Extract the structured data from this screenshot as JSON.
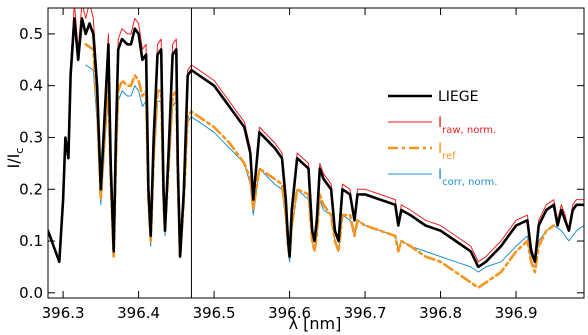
{
  "chart_data": {
    "type": "line",
    "xlabel": "λ [nm]",
    "ylabel_main": "I/I",
    "ylabel_sub": "c",
    "xlim": [
      396.28,
      396.99
    ],
    "ylim": [
      -0.01,
      0.55
    ],
    "xticks": [
      {
        "v": 396.3,
        "label": "396.3"
      },
      {
        "v": 396.4,
        "label": "396.4"
      },
      {
        "v": 396.5,
        "label": "396.5"
      },
      {
        "v": 396.6,
        "label": "396.6"
      },
      {
        "v": 396.7,
        "label": "396.7"
      },
      {
        "v": 396.8,
        "label": "396.8"
      },
      {
        "v": 396.9,
        "label": "396.9"
      }
    ],
    "yticks": [
      {
        "v": 0.0,
        "label": "0.0"
      },
      {
        "v": 0.1,
        "label": "0.1"
      },
      {
        "v": 0.2,
        "label": "0.2"
      },
      {
        "v": 0.3,
        "label": "0.3"
      },
      {
        "v": 0.4,
        "label": "0.4"
      },
      {
        "v": 0.5,
        "label": "0.5"
      }
    ],
    "vline_x": 396.47,
    "legend_position": "right",
    "series": [
      {
        "name": "LIEGE",
        "legend_main": "LIEGE",
        "legend_sub": "",
        "color": "#000000",
        "width": 2.6,
        "dash": "",
        "x": [
          396.28,
          396.29,
          396.295,
          396.3,
          396.303,
          396.307,
          396.31,
          396.315,
          396.32,
          396.325,
          396.33,
          396.335,
          396.34,
          396.345,
          396.35,
          396.355,
          396.36,
          396.363,
          396.367,
          396.37,
          396.373,
          396.378,
          396.385,
          396.39,
          396.395,
          396.4,
          396.405,
          396.41,
          396.413,
          396.416,
          396.42,
          396.425,
          396.43,
          396.433,
          396.435,
          396.44,
          396.445,
          396.45,
          396.452,
          396.455,
          396.46,
          396.465,
          396.47,
          396.48,
          396.5,
          396.52,
          396.54,
          396.548,
          396.552,
          396.56,
          396.58,
          396.59,
          396.595,
          396.598,
          396.6,
          396.603,
          396.61,
          396.625,
          396.63,
          396.633,
          396.636,
          396.64,
          396.645,
          396.655,
          396.66,
          396.665,
          396.67,
          396.68,
          396.686,
          396.69,
          396.7,
          396.72,
          396.74,
          396.744,
          396.748,
          396.76,
          396.78,
          396.8,
          396.82,
          396.84,
          396.85,
          396.86,
          396.88,
          396.9,
          396.915,
          396.92,
          396.925,
          396.93,
          396.94,
          396.95,
          396.955,
          396.96,
          396.965,
          396.97,
          396.975,
          396.98,
          396.99
        ],
        "y": [
          0.12,
          0.08,
          0.06,
          0.18,
          0.3,
          0.26,
          0.42,
          0.53,
          0.45,
          0.53,
          0.5,
          0.52,
          0.5,
          0.4,
          0.2,
          0.34,
          0.48,
          0.25,
          0.08,
          0.3,
          0.47,
          0.49,
          0.48,
          0.48,
          0.51,
          0.5,
          0.45,
          0.46,
          0.2,
          0.11,
          0.3,
          0.46,
          0.47,
          0.2,
          0.12,
          0.28,
          0.46,
          0.47,
          0.25,
          0.07,
          0.2,
          0.42,
          0.43,
          0.42,
          0.4,
          0.36,
          0.32,
          0.27,
          0.18,
          0.31,
          0.28,
          0.26,
          0.18,
          0.1,
          0.07,
          0.16,
          0.26,
          0.24,
          0.12,
          0.1,
          0.14,
          0.24,
          0.22,
          0.2,
          0.12,
          0.1,
          0.2,
          0.19,
          0.14,
          0.19,
          0.19,
          0.18,
          0.17,
          0.13,
          0.16,
          0.15,
          0.13,
          0.12,
          0.1,
          0.08,
          0.05,
          0.06,
          0.09,
          0.13,
          0.14,
          0.08,
          0.06,
          0.13,
          0.16,
          0.17,
          0.13,
          0.16,
          0.14,
          0.12,
          0.16,
          0.17,
          0.17
        ]
      },
      {
        "name": "I raw, norm.",
        "legend_main": "I",
        "legend_sub": "raw, norm.",
        "color": "#ee2020",
        "width": 1,
        "dash": "",
        "x": [
          396.28,
          396.29,
          396.295,
          396.3,
          396.303,
          396.307,
          396.31,
          396.315,
          396.32,
          396.325,
          396.33,
          396.335,
          396.34,
          396.345,
          396.35,
          396.355,
          396.36,
          396.363,
          396.367,
          396.37,
          396.373,
          396.378,
          396.385,
          396.39,
          396.395,
          396.4,
          396.405,
          396.41,
          396.413,
          396.416,
          396.42,
          396.425,
          396.43,
          396.433,
          396.435,
          396.44,
          396.445,
          396.45,
          396.452,
          396.455,
          396.46,
          396.465,
          396.47,
          396.48,
          396.5,
          396.52,
          396.54,
          396.548,
          396.552,
          396.56,
          396.58,
          396.59,
          396.595,
          396.598,
          396.6,
          396.603,
          396.61,
          396.625,
          396.63,
          396.633,
          396.636,
          396.64,
          396.645,
          396.655,
          396.66,
          396.665,
          396.67,
          396.68,
          396.686,
          396.69,
          396.7,
          396.72,
          396.74,
          396.744,
          396.748,
          396.76,
          396.78,
          396.8,
          396.82,
          396.84,
          396.85,
          396.86,
          396.88,
          396.9,
          396.915,
          396.92,
          396.925,
          396.93,
          396.94,
          396.95,
          396.955,
          396.96,
          396.965,
          396.97,
          396.975,
          396.98,
          396.99
        ],
        "y": [
          0.12,
          0.08,
          0.06,
          0.18,
          0.3,
          0.26,
          0.44,
          0.56,
          0.47,
          0.56,
          0.53,
          0.56,
          0.53,
          0.42,
          0.21,
          0.36,
          0.5,
          0.26,
          0.08,
          0.31,
          0.49,
          0.51,
          0.5,
          0.5,
          0.53,
          0.52,
          0.47,
          0.48,
          0.21,
          0.11,
          0.31,
          0.48,
          0.49,
          0.21,
          0.12,
          0.29,
          0.48,
          0.49,
          0.26,
          0.07,
          0.21,
          0.43,
          0.44,
          0.43,
          0.41,
          0.37,
          0.33,
          0.28,
          0.18,
          0.32,
          0.29,
          0.27,
          0.18,
          0.1,
          0.07,
          0.16,
          0.27,
          0.25,
          0.12,
          0.1,
          0.14,
          0.25,
          0.23,
          0.21,
          0.12,
          0.1,
          0.21,
          0.2,
          0.14,
          0.2,
          0.2,
          0.19,
          0.18,
          0.13,
          0.17,
          0.16,
          0.14,
          0.13,
          0.11,
          0.09,
          0.06,
          0.07,
          0.1,
          0.14,
          0.15,
          0.09,
          0.06,
          0.14,
          0.17,
          0.18,
          0.14,
          0.17,
          0.15,
          0.12,
          0.17,
          0.18,
          0.18
        ]
      },
      {
        "name": "I ref",
        "legend_main": "I",
        "legend_sub": "ref",
        "color": "#f7941d",
        "width": 2.6,
        "dash": "10,4,3,4",
        "x": [
          396.33,
          396.34,
          396.345,
          396.35,
          396.355,
          396.36,
          396.363,
          396.367,
          396.37,
          396.373,
          396.378,
          396.385,
          396.39,
          396.395,
          396.4,
          396.405,
          396.41,
          396.413,
          396.416,
          396.42,
          396.425,
          396.43,
          396.433,
          396.435,
          396.44,
          396.445,
          396.45,
          396.452,
          396.455,
          396.46,
          396.465,
          396.47,
          396.48,
          396.5,
          396.52,
          396.54,
          396.548,
          396.552,
          396.56,
          396.58,
          396.59,
          396.595,
          396.598,
          396.6,
          396.603,
          396.61,
          396.625,
          396.63,
          396.633,
          396.636,
          396.64,
          396.645,
          396.655,
          396.66,
          396.665,
          396.67,
          396.68,
          396.686,
          396.69,
          396.7,
          396.72,
          396.74,
          396.744,
          396.748,
          396.76,
          396.78,
          396.8,
          396.82,
          396.84,
          396.85,
          396.86,
          396.88,
          396.9,
          396.915,
          396.92,
          396.925,
          396.93,
          396.94,
          396.95
        ],
        "y": [
          0.48,
          0.47,
          0.36,
          0.18,
          0.3,
          0.4,
          0.22,
          0.07,
          0.25,
          0.39,
          0.41,
          0.4,
          0.4,
          0.42,
          0.41,
          0.38,
          0.39,
          0.18,
          0.1,
          0.26,
          0.39,
          0.39,
          0.18,
          0.12,
          0.25,
          0.38,
          0.39,
          0.22,
          0.07,
          0.18,
          0.34,
          0.35,
          0.34,
          0.32,
          0.29,
          0.25,
          0.22,
          0.16,
          0.24,
          0.22,
          0.21,
          0.15,
          0.09,
          0.07,
          0.13,
          0.2,
          0.19,
          0.1,
          0.08,
          0.11,
          0.19,
          0.17,
          0.15,
          0.1,
          0.08,
          0.15,
          0.15,
          0.11,
          0.14,
          0.13,
          0.12,
          0.11,
          0.08,
          0.1,
          0.09,
          0.07,
          0.06,
          0.04,
          0.02,
          0.01,
          0.02,
          0.04,
          0.08,
          0.1,
          0.06,
          0.04,
          0.09,
          0.12,
          0.13
        ]
      },
      {
        "name": "I corr, norm.",
        "legend_main": "I",
        "legend_sub": "corr, norm.",
        "color": "#1f8fd6",
        "width": 1,
        "dash": "",
        "x": [
          396.33,
          396.34,
          396.345,
          396.35,
          396.355,
          396.36,
          396.363,
          396.367,
          396.37,
          396.373,
          396.378,
          396.385,
          396.39,
          396.395,
          396.4,
          396.405,
          396.41,
          396.413,
          396.416,
          396.42,
          396.425,
          396.43,
          396.433,
          396.435,
          396.44,
          396.445,
          396.45,
          396.452,
          396.455,
          396.46,
          396.465,
          396.47,
          396.48,
          396.5,
          396.52,
          396.54,
          396.548,
          396.552,
          396.56,
          396.58,
          396.59,
          396.595,
          396.598,
          396.6,
          396.603,
          396.61,
          396.625,
          396.63,
          396.633,
          396.636,
          396.64,
          396.645,
          396.655,
          396.66,
          396.665,
          396.67,
          396.68,
          396.686,
          396.69,
          396.7,
          396.72,
          396.74,
          396.744,
          396.748,
          396.76,
          396.78,
          396.8,
          396.82,
          396.84,
          396.85,
          396.86,
          396.88,
          396.9,
          396.915,
          396.92,
          396.925,
          396.93,
          396.94,
          396.95,
          396.96,
          396.97,
          396.98,
          396.99
        ],
        "y": [
          0.44,
          0.43,
          0.33,
          0.17,
          0.28,
          0.39,
          0.2,
          0.07,
          0.24,
          0.37,
          0.39,
          0.38,
          0.38,
          0.4,
          0.39,
          0.36,
          0.37,
          0.17,
          0.09,
          0.25,
          0.37,
          0.37,
          0.17,
          0.11,
          0.24,
          0.36,
          0.37,
          0.21,
          0.07,
          0.17,
          0.33,
          0.34,
          0.33,
          0.31,
          0.28,
          0.25,
          0.21,
          0.15,
          0.24,
          0.21,
          0.2,
          0.14,
          0.08,
          0.06,
          0.12,
          0.2,
          0.18,
          0.1,
          0.08,
          0.11,
          0.18,
          0.16,
          0.15,
          0.1,
          0.08,
          0.15,
          0.14,
          0.11,
          0.14,
          0.13,
          0.12,
          0.11,
          0.08,
          0.1,
          0.09,
          0.08,
          0.07,
          0.06,
          0.05,
          0.04,
          0.05,
          0.06,
          0.09,
          0.11,
          0.06,
          0.05,
          0.1,
          0.12,
          0.13,
          0.12,
          0.1,
          0.12,
          0.13
        ]
      }
    ]
  }
}
